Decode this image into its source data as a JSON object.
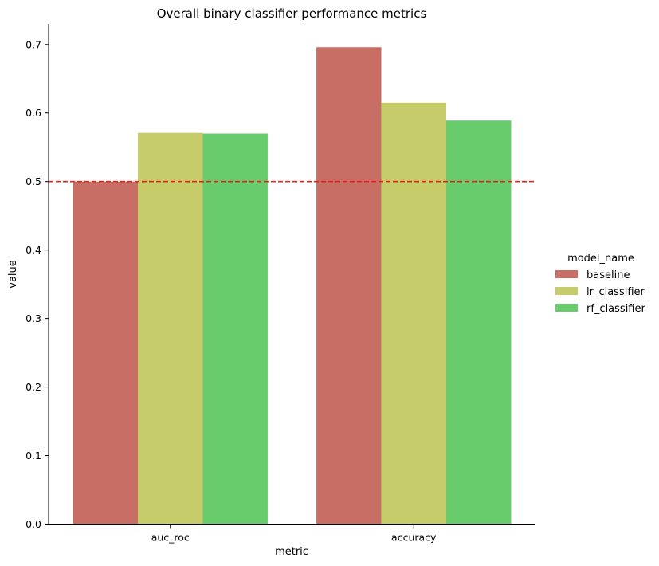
{
  "chart_data": {
    "type": "bar",
    "title": "Overall binary classifier performance metrics",
    "xlabel": "metric",
    "ylabel": "value",
    "categories": [
      "auc_roc",
      "accuracy"
    ],
    "series": [
      {
        "name": "baseline",
        "values": [
          0.5,
          0.696
        ],
        "color": "#c96e65"
      },
      {
        "name": "lr_classifier",
        "values": [
          0.571,
          0.615
        ],
        "color": "#c6cc69"
      },
      {
        "name": "rf_classifier",
        "values": [
          0.57,
          0.589
        ],
        "color": "#68cc6d"
      }
    ],
    "ylim": [
      0,
      0.73
    ],
    "yticks": [
      "0.0",
      "0.1",
      "0.2",
      "0.3",
      "0.4",
      "0.5",
      "0.6",
      "0.7"
    ],
    "reference_line": {
      "value": 0.5,
      "style": "dashed",
      "color": "#e8221b"
    },
    "legend": {
      "title": "model_name",
      "placement": "right"
    },
    "grid": false
  }
}
